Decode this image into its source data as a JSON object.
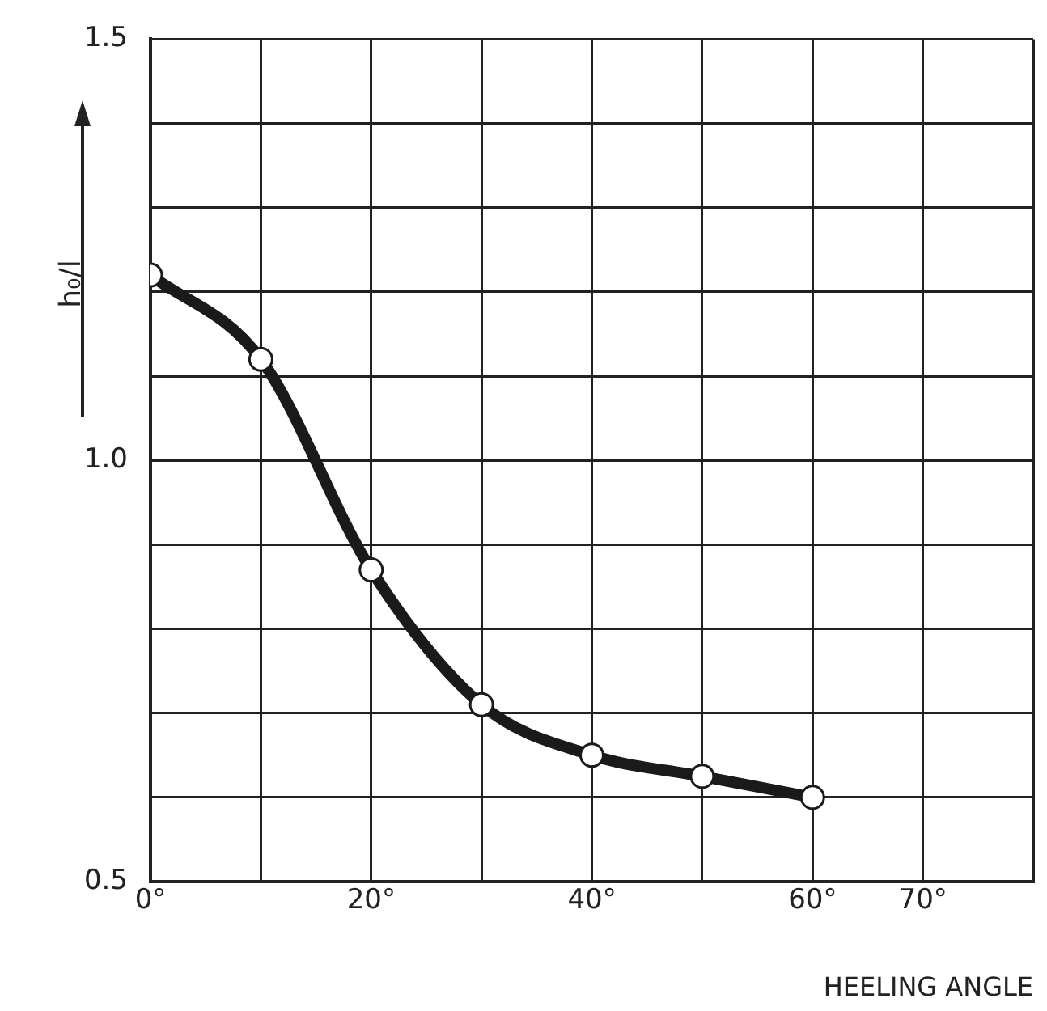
{
  "chart_data": {
    "type": "line",
    "xlabel": "HEELING ANGLE",
    "ylabel": "h₀/l",
    "x": [
      0,
      10,
      20,
      30,
      40,
      50,
      60
    ],
    "series": [
      {
        "color": "#1a1a1a",
        "values": [
          1.22,
          1.12,
          0.87,
          0.71,
          0.65,
          0.625,
          0.6
        ]
      }
    ],
    "xlim": [
      0,
      80
    ],
    "xticks": [
      {
        "value": 0,
        "label": "0°"
      },
      {
        "value": 10,
        "label": null
      },
      {
        "value": 20,
        "label": "20°"
      },
      {
        "value": 30,
        "label": null
      },
      {
        "value": 40,
        "label": "40°"
      },
      {
        "value": 50,
        "label": null
      },
      {
        "value": 60,
        "label": "60°"
      },
      {
        "value": 70,
        "label": "70°"
      },
      {
        "value": 80,
        "label": null
      }
    ],
    "ylim": [
      0.5,
      1.5
    ],
    "yticks": [
      {
        "value": 0.5,
        "label": "0.5"
      },
      {
        "value": 0.6,
        "label": null
      },
      {
        "value": 0.7,
        "label": null
      },
      {
        "value": 0.8,
        "label": null
      },
      {
        "value": 0.9,
        "label": null
      },
      {
        "value": 1,
        "label": "1.0"
      },
      {
        "value": 1.1,
        "label": null
      },
      {
        "value": 1.2,
        "label": null
      },
      {
        "value": 1.3,
        "label": null
      },
      {
        "value": 1.4,
        "label": null
      },
      {
        "value": 1.5,
        "label": "1.5"
      }
    ],
    "grid": true,
    "legend": false,
    "marker": "circle",
    "line_style": "solid"
  }
}
